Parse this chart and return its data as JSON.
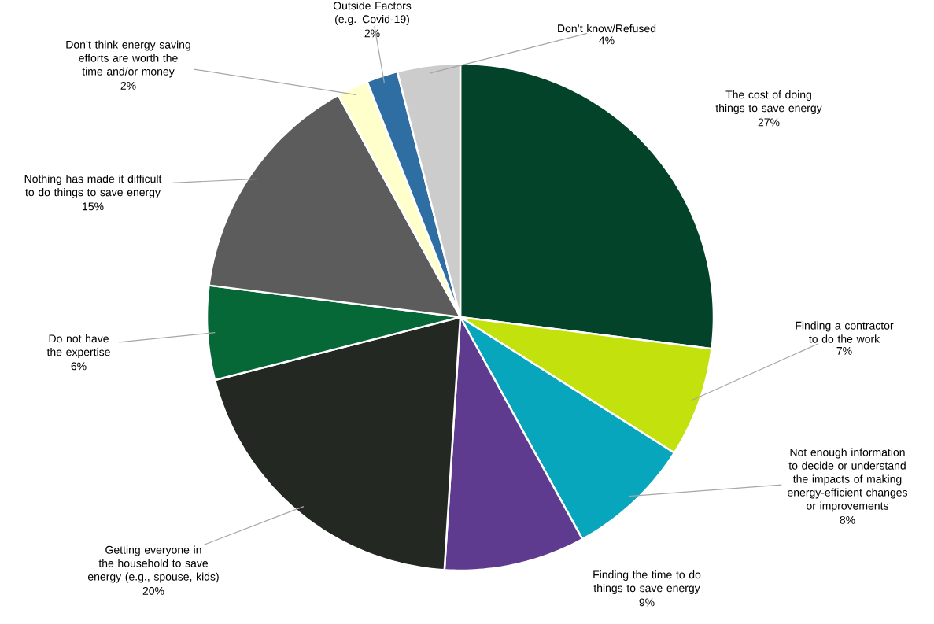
{
  "chart_data": {
    "type": "pie",
    "categories": [
      "The cost of doing things to save energy",
      "Finding a contractor to do the work",
      "Not enough information to decide or understand the impacts of making energy-efficient changes or improvements",
      "Finding the time to do things to save energy",
      "Getting everyone in the household to save energy (e.g., spouse, kids)",
      "Do not have the expertise",
      "Nothing has made it difficult to do things to save energy",
      "Don’t think energy saving efforts are worth the time and/or money",
      "Outside Factors (e.g. Covid-19)",
      "Don’t know/Refused"
    ],
    "values": [
      27,
      7,
      8,
      9,
      20,
      6,
      15,
      2,
      2,
      4
    ],
    "value_labels": [
      "27%",
      "7%",
      "8%",
      "9%",
      "20%",
      "6%",
      "15%",
      "2%",
      "2%",
      "4%"
    ],
    "colors": [
      "#03432a",
      "#c3e10c",
      "#07a6bd",
      "#5f3b8f",
      "#232822",
      "#066737",
      "#5c5c5c",
      "#ffffcc",
      "#2f6ea3",
      "#cccccc"
    ]
  }
}
